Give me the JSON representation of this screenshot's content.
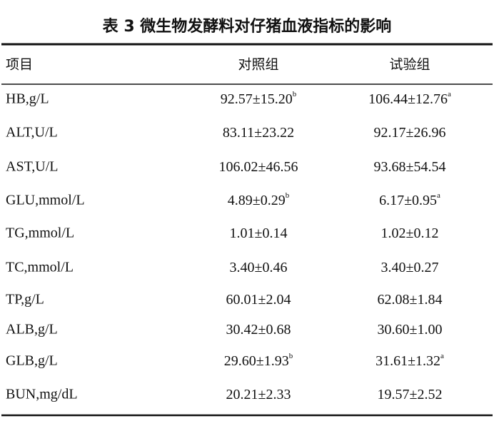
{
  "title": "表 3  微生物发酵料对仔猪血液指标的影响",
  "table": {
    "header": [
      "项目",
      "对照组",
      "试验组"
    ],
    "rows": [
      [
        "HB,g/L",
        {
          "text": "92.57±15.20",
          "sup": "b"
        },
        {
          "text": "106.44±12.76",
          "sup": "a"
        }
      ],
      [
        "ALT,U/L",
        {
          "text": "83.11±23.22"
        },
        {
          "text": "92.17±26.96"
        }
      ],
      [
        "AST,U/L",
        {
          "text": "106.02±46.56"
        },
        {
          "text": "93.68±54.54"
        }
      ],
      [
        "GLU,mmol/L",
        {
          "text": "4.89±0.29",
          "sup": "b"
        },
        {
          "text": "6.17±0.95",
          "sup": "a"
        }
      ],
      [
        "TG,mmol/L",
        {
          "text": "1.01±0.14"
        },
        {
          "text": "1.02±0.12"
        }
      ],
      [
        "TC,mmol/L",
        {
          "text": "3.40±0.46"
        },
        {
          "text": "3.40±0.27"
        }
      ],
      [
        "TP,g/L",
        {
          "text": "60.01±2.04"
        },
        {
          "text": "62.08±1.84"
        }
      ],
      [
        "ALB,g/L",
        {
          "text": "30.42±0.68"
        },
        {
          "text": "30.60±1.00"
        }
      ],
      [
        "GLB,g/L",
        {
          "text": "29.60±1.93",
          "sup": "b"
        },
        {
          "text": "31.61±1.32",
          "sup": "a"
        }
      ],
      [
        "BUN,mg/dL",
        {
          "text": "20.21±2.33"
        },
        {
          "text": "19.57±2.52"
        }
      ]
    ]
  }
}
